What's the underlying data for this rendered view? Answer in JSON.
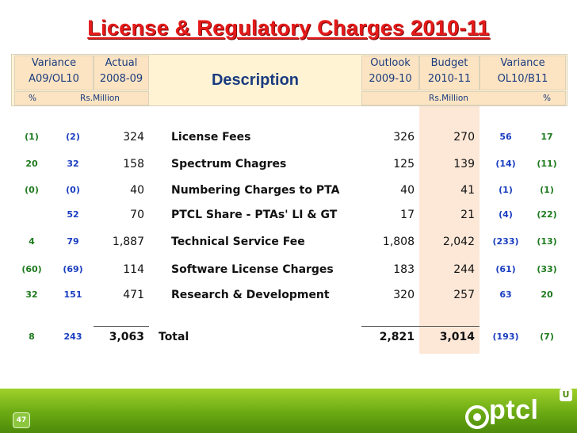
{
  "title": "License & Regulatory Charges 2010-11",
  "header": {
    "variance_a": {
      "line1": "Variance",
      "line2": "A09/OL10"
    },
    "actual": {
      "line1": "Actual",
      "line2": "2008-09"
    },
    "description": "Description",
    "outlook": {
      "line1": "Outlook",
      "line2": "2009-10"
    },
    "budget": {
      "line1": "Budget",
      "line2": "2010-11"
    },
    "variance_b": {
      "line1": "Variance",
      "line2": "OL10/B11"
    },
    "sub_left_pct": "%",
    "sub_left_rs": "Rs.Million",
    "sub_right_rs": "Rs.Million",
    "sub_right_pct": "%"
  },
  "rows": [
    {
      "va_pct": "(1)",
      "va_rs": "(2)",
      "actual": "324",
      "desc": "License Fees",
      "outlook": "326",
      "budget": "270",
      "vb_rs": "56",
      "vb_pct": "17"
    },
    {
      "va_pct": "20",
      "va_rs": "32",
      "actual": "158",
      "desc": "Spectrum Chagres",
      "outlook": "125",
      "budget": "139",
      "vb_rs": "(14)",
      "vb_pct": "(11)"
    },
    {
      "va_pct": "(0)",
      "va_rs": "(0)",
      "actual": "40",
      "desc": "Numbering Charges to PTA",
      "outlook": "40",
      "budget": "41",
      "vb_rs": "(1)",
      "vb_pct": "(1)"
    },
    {
      "va_pct": "",
      "va_rs": "52",
      "actual": "70",
      "desc": "PTCL Share - PTAs' LI & GT",
      "outlook": "17",
      "budget": "21",
      "vb_rs": "(4)",
      "vb_pct": "(22)"
    },
    {
      "va_pct": "4",
      "va_rs": "79",
      "actual": "1,887",
      "desc": "Technical Service Fee",
      "outlook": "1,808",
      "budget": "2,042",
      "vb_rs": "(233)",
      "vb_pct": "(13)"
    },
    {
      "va_pct": "(60)",
      "va_rs": "(69)",
      "actual": "114",
      "desc": "Software License Charges",
      "outlook": "183",
      "budget": "244",
      "vb_rs": "(61)",
      "vb_pct": "(33)"
    },
    {
      "va_pct": "32",
      "va_rs": "151",
      "actual": "471",
      "desc": "Research & Development",
      "outlook": "320",
      "budget": "257",
      "vb_rs": "63",
      "vb_pct": "20"
    }
  ],
  "total": {
    "va_pct": "8",
    "va_rs": "243",
    "actual": "3,063",
    "desc": "Total",
    "outlook": "2,821",
    "budget": "3,014",
    "vb_rs": "(193)",
    "vb_pct": "(7)"
  },
  "footer": {
    "page_number": "47",
    "logo_text": "ptcl",
    "logo_icon": "U"
  },
  "colors": {
    "title": "#e51a1a",
    "header_text": "#1a3b7f",
    "green_values": "#1e7a1e",
    "blue_values": "#1a3ec0",
    "footer_green": "#6aa913",
    "budget_column": "#fde8d8"
  }
}
